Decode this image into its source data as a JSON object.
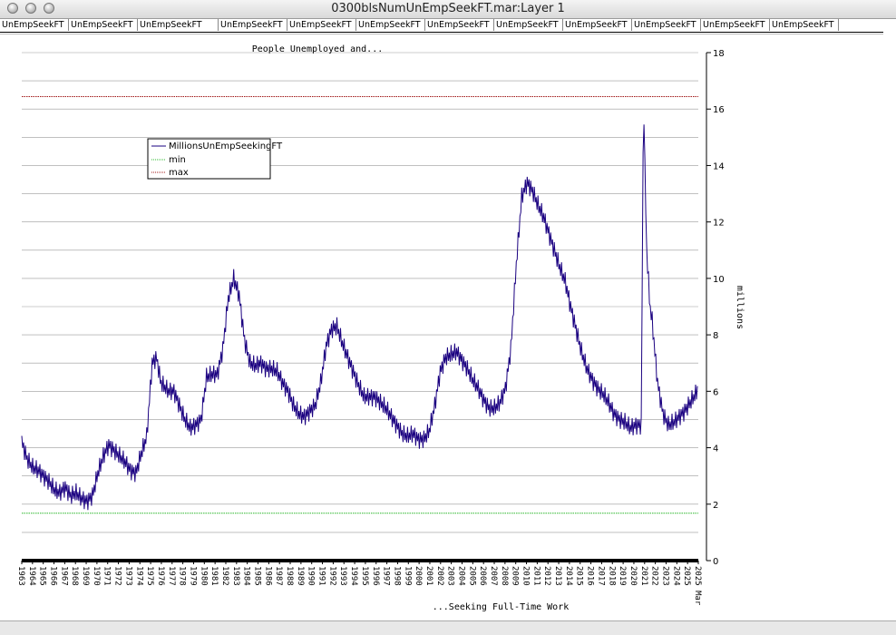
{
  "window": {
    "title": "0300blsNumUnEmpSeekFT.mar:Layer 1"
  },
  "tabs": [
    "UnEmpSeekFT",
    "UnEmpSeekFT",
    "UnEmpSeekFT",
    "UnEmpSeekFT",
    "UnEmpSeekFT",
    "UnEmpSeekFT",
    "UnEmpSeekFT",
    "UnEmpSeekFT",
    "UnEmpSeekFT",
    "UnEmpSeekFT",
    "UnEmpSeekFT",
    "UnEmpSeekFT"
  ],
  "colors": {
    "series": "#1a0080",
    "min": "#2db82d",
    "max": "#a01818",
    "grid": "#9a9a9a"
  },
  "chart_data": {
    "type": "line",
    "title": "People Unemployed and...",
    "xlabel": "...Seeking Full-Time Work",
    "ylabel": "millions",
    "ylim": [
      0,
      18
    ],
    "yticks": [
      "0",
      "2",
      "4",
      "6",
      "8",
      "10",
      "12",
      "14",
      "16",
      "18"
    ],
    "xlim": [
      1963,
      2025.25
    ],
    "xticks": [
      "1963",
      "1964",
      "1965",
      "1966",
      "1967",
      "1968",
      "1969",
      "1970",
      "1971",
      "1972",
      "1973",
      "1974",
      "1975",
      "1976",
      "1977",
      "1978",
      "1979",
      "1980",
      "1981",
      "1982",
      "1983",
      "1984",
      "1985",
      "1986",
      "1987",
      "1988",
      "1989",
      "1990",
      "1991",
      "1992",
      "1993",
      "1994",
      "1995",
      "1996",
      "1997",
      "1998",
      "1999",
      "2000",
      "2001",
      "2002",
      "2003",
      "2004",
      "2005",
      "2006",
      "2007",
      "2008",
      "2009",
      "2010",
      "2011",
      "2012",
      "2013",
      "2014",
      "2015",
      "2016",
      "2017",
      "2018",
      "2019",
      "2020",
      "2021",
      "2022",
      "2023",
      "2024",
      "2025",
      "2025 Mar"
    ],
    "grid": true,
    "legend_position": "upper-left",
    "series": [
      {
        "name": "MillionsUnEmpSeekingFT",
        "x": [
          1963,
          1963.5,
          1964,
          1964.5,
          1965,
          1965.5,
          1966,
          1966.5,
          1967,
          1967.5,
          1968,
          1968.5,
          1969,
          1969.5,
          1970,
          1970.5,
          1971,
          1971.5,
          1972,
          1972.5,
          1973,
          1973.5,
          1974,
          1974.5,
          1975,
          1975.4,
          1975.8,
          1976.5,
          1977,
          1977.5,
          1978,
          1978.5,
          1979,
          1979.5,
          1980,
          1980.5,
          1981,
          1981.5,
          1982,
          1982.5,
          1983,
          1983.5,
          1984,
          1984.5,
          1985,
          1985.5,
          1986,
          1986.5,
          1987,
          1987.5,
          1988,
          1988.5,
          1989,
          1989.5,
          1990,
          1990.5,
          1991,
          1991.5,
          1992,
          1992.5,
          1993,
          1993.5,
          1994,
          1994.5,
          1995,
          1995.5,
          1996,
          1996.5,
          1997,
          1997.5,
          1998,
          1998.5,
          1999,
          1999.5,
          2000,
          2000.5,
          2001,
          2001.5,
          2002,
          2002.5,
          2003,
          2003.5,
          2004,
          2004.5,
          2005,
          2005.5,
          2006,
          2006.5,
          2007,
          2007.5,
          2008,
          2008.5,
          2009,
          2009.5,
          2010,
          2010.5,
          2011,
          2011.5,
          2012,
          2012.5,
          2013,
          2013.5,
          2014,
          2014.5,
          2015,
          2015.5,
          2016,
          2016.5,
          2017,
          2017.5,
          2018,
          2018.5,
          2019,
          2019.5,
          2020,
          2020.2,
          2020.3,
          2020.5,
          2020.8,
          2021,
          2021.5,
          2022,
          2022.5,
          2023,
          2023.5,
          2024,
          2024.5,
          2025,
          2025.2
        ],
        "values": [
          4.2,
          3.6,
          3.3,
          3.2,
          3.0,
          2.8,
          2.5,
          2.4,
          2.6,
          2.3,
          2.4,
          2.2,
          2.1,
          2.3,
          3.1,
          3.7,
          4.1,
          3.9,
          3.7,
          3.5,
          3.2,
          3.1,
          3.8,
          4.4,
          7.0,
          7.2,
          6.3,
          6.0,
          6.0,
          5.5,
          5.0,
          4.7,
          4.8,
          5.0,
          6.5,
          6.6,
          6.6,
          7.5,
          9.3,
          10.0,
          9.4,
          7.8,
          7.0,
          6.9,
          7.0,
          6.8,
          6.8,
          6.7,
          6.3,
          6.0,
          5.5,
          5.2,
          5.1,
          5.3,
          5.5,
          6.3,
          7.6,
          8.2,
          8.3,
          7.7,
          7.2,
          6.7,
          6.2,
          5.8,
          5.8,
          5.8,
          5.6,
          5.4,
          5.1,
          4.8,
          4.5,
          4.4,
          4.5,
          4.3,
          4.3,
          4.6,
          5.5,
          6.7,
          7.2,
          7.3,
          7.4,
          7.1,
          6.8,
          6.4,
          6.1,
          5.7,
          5.4,
          5.4,
          5.6,
          6.1,
          7.5,
          10.5,
          12.9,
          13.4,
          13.1,
          12.6,
          12.2,
          11.6,
          11.0,
          10.4,
          9.9,
          9.0,
          8.2,
          7.4,
          6.8,
          6.4,
          6.1,
          5.9,
          5.6,
          5.2,
          5.0,
          4.9,
          4.7,
          4.8,
          4.8,
          16.4,
          14.5,
          11.0,
          9.0,
          8.5,
          6.3,
          5.2,
          4.8,
          4.9,
          5.1,
          5.3,
          5.6,
          5.9,
          6.1
        ]
      },
      {
        "name": "min",
        "x": [
          1963,
          2025.25
        ],
        "values": [
          1.68,
          1.68
        ]
      },
      {
        "name": "max",
        "x": [
          1963,
          2025.25
        ],
        "values": [
          16.44,
          16.44
        ]
      }
    ]
  }
}
